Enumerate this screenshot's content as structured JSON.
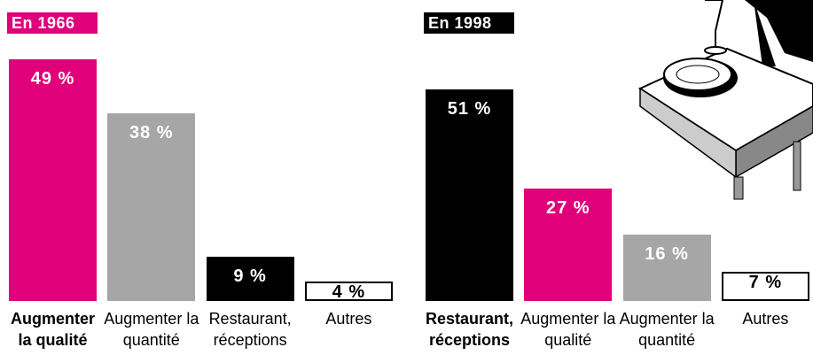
{
  "chart_data": [
    {
      "type": "bar",
      "title": "En 1966",
      "title_color": "#e0007a",
      "categories": [
        "Augmenter la qualité",
        "Augmenter la quantité",
        "Restaurant, réceptions",
        "Autres"
      ],
      "values": [
        49,
        38,
        9,
        4
      ],
      "value_labels": [
        "49 %",
        "38 %",
        "9 %",
        "4 %"
      ],
      "colors": [
        "#e0007a",
        "#a6a6a6",
        "#000000",
        "#ffffff"
      ],
      "bold_category": 0
    },
    {
      "type": "bar",
      "title": "En 1998",
      "title_color": "#000000",
      "categories": [
        "Restaurant, réceptions",
        "Augmenter la qualité",
        "Augmenter la quantité",
        "Autres"
      ],
      "values": [
        51,
        27,
        16,
        7
      ],
      "value_labels": [
        "51 %",
        "27 %",
        "16 %",
        "7 %"
      ],
      "colors": [
        "#000000",
        "#e0007a",
        "#a6a6a6",
        "#ffffff"
      ],
      "bold_category": 0
    }
  ]
}
